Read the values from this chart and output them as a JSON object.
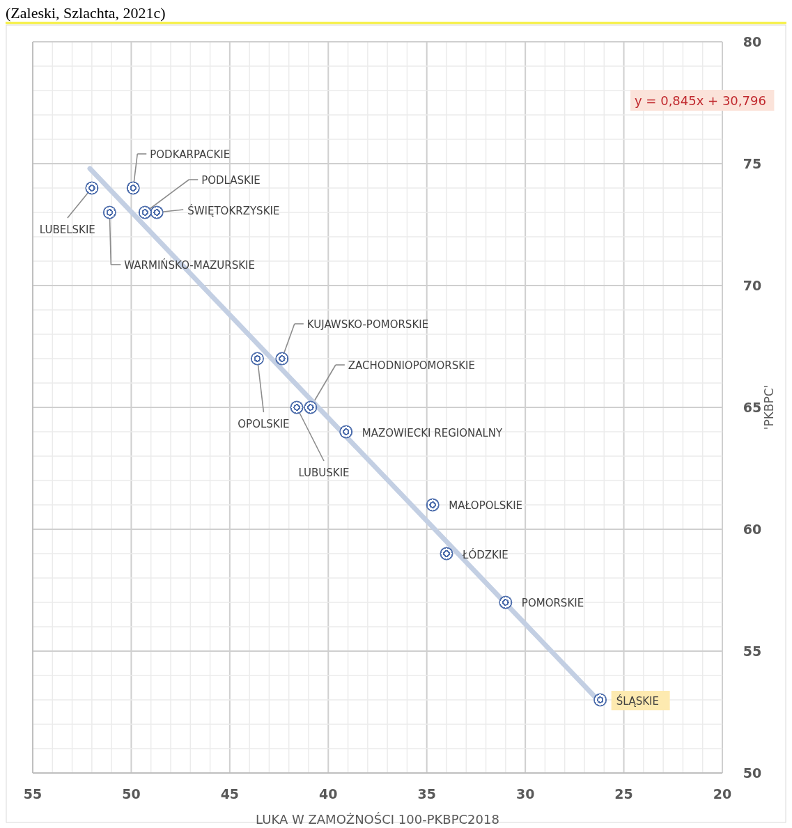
{
  "chart_data": {
    "type": "scatter",
    "xlabel": "LUKA W ZAMOŻNOŚCI 100-PKBPC2018",
    "ylabel": "'PKBPC'",
    "xlim": [
      55,
      20
    ],
    "ylim": [
      50,
      80
    ],
    "xticks": [
      55,
      {
        "value": 54,
        "label": null
      },
      {
        "value": 53,
        "label": null
      },
      {
        "value": 52,
        "label": null
      },
      {
        "value": 51,
        "label": null
      },
      50,
      {
        "value": 49,
        "label": null
      },
      {
        "value": 48,
        "label": null
      },
      {
        "value": 47,
        "label": null
      },
      {
        "value": 46,
        "label": null
      },
      45,
      {
        "value": 44,
        "label": null
      },
      {
        "value": 43,
        "label": null
      },
      {
        "value": 42,
        "label": null
      },
      {
        "value": 41,
        "label": null
      },
      40,
      {
        "value": 39,
        "label": null
      },
      {
        "value": 38,
        "label": null
      },
      {
        "value": 37,
        "label": null
      },
      {
        "value": 36,
        "label": null
      },
      35,
      {
        "value": 34,
        "label": null
      },
      {
        "value": 33,
        "label": null
      },
      {
        "value": 32,
        "label": null
      },
      {
        "value": 31,
        "label": null
      },
      30,
      {
        "value": 29,
        "label": null
      },
      {
        "value": 28,
        "label": null
      },
      {
        "value": 27,
        "label": null
      },
      {
        "value": 26,
        "label": null
      },
      25,
      {
        "value": 24,
        "label": null
      },
      {
        "value": 23,
        "label": null
      },
      {
        "value": 22,
        "label": null
      },
      {
        "value": 21,
        "label": null
      },
      20
    ],
    "yticks": [
      50,
      {
        "value": 51,
        "label": null
      },
      {
        "value": 52,
        "label": null
      },
      {
        "value": 53,
        "label": null
      },
      {
        "value": 54,
        "label": null
      },
      55,
      {
        "value": 56,
        "label": null
      },
      {
        "value": 57,
        "label": null
      },
      {
        "value": 58,
        "label": null
      },
      {
        "value": 59,
        "label": null
      },
      60,
      {
        "value": 61,
        "label": null
      },
      {
        "value": 62,
        "label": null
      },
      {
        "value": 63,
        "label": null
      },
      {
        "value": 64,
        "label": null
      },
      65,
      {
        "value": 66,
        "label": null
      },
      {
        "value": 67,
        "label": null
      },
      {
        "value": 68,
        "label": null
      },
      {
        "value": 69,
        "label": null
      },
      70,
      {
        "value": 71,
        "label": null
      },
      {
        "value": 72,
        "label": null
      },
      {
        "value": 73,
        "label": null
      },
      {
        "value": 74,
        "label": null
      },
      75,
      {
        "value": 76,
        "label": null
      },
      {
        "value": 77,
        "label": null
      },
      {
        "value": 78,
        "label": null
      },
      {
        "value": 79,
        "label": null
      },
      80
    ],
    "grid": true,
    "series": [
      {
        "type": "line",
        "marker": "none",
        "color": "#c3cfe3",
        "x": [
          52.1,
          26.2
        ],
        "values": [
          74.8,
          52.9
        ]
      },
      {
        "marker": "circle",
        "color": "#4f6fad",
        "x": [
          52,
          49.9,
          51.1,
          49.3,
          48.7,
          43.6,
          42.35,
          41.6,
          40.9,
          39.1,
          34.7,
          34,
          31,
          26.2
        ],
        "values": [
          74,
          74,
          73,
          73,
          73,
          67,
          67,
          65,
          65,
          64,
          61,
          59,
          57,
          53
        ]
      }
    ],
    "annotations": [
      "(Zaleski, Szlachta, 2021c)",
      "y = 0,845x + 30,796",
      {
        "text": "LUBELSKIE",
        "x": 52,
        "y": 74
      },
      {
        "text": "PODKARPACKIE",
        "x": 49.9,
        "y": 74
      },
      {
        "text": "WARMIŃSKO-MAZURSKIE",
        "x": 51.1,
        "y": 73
      },
      {
        "text": "PODLASKIE",
        "x": 49.3,
        "y": 73
      },
      {
        "text": "ŚWIĘTOKRZYSKIE",
        "x": 48.7,
        "y": 73
      },
      {
        "text": "OPOLSKIE",
        "x": 43.6,
        "y": 67
      },
      {
        "text": "KUJAWSKO-POMORSKIE",
        "x": 42.35,
        "y": 67
      },
      {
        "text": "LUBUSKIE",
        "x": 41.6,
        "y": 65
      },
      {
        "text": "ZACHODNIOPOMORSKIE",
        "x": 40.9,
        "y": 65
      },
      {
        "text": "MAZOWIECKI REGIONALNY",
        "x": 39.1,
        "y": 64
      },
      {
        "text": "MAŁOPOLSKIE",
        "x": 34.7,
        "y": 61
      },
      {
        "text": "ŁÓDZKIE",
        "x": 34,
        "y": 59
      },
      {
        "text": "POMORSKIE",
        "x": 31,
        "y": 57
      },
      {
        "text": "ŚLĄSKIE",
        "x": 26.2,
        "y": 53
      }
    ]
  }
}
